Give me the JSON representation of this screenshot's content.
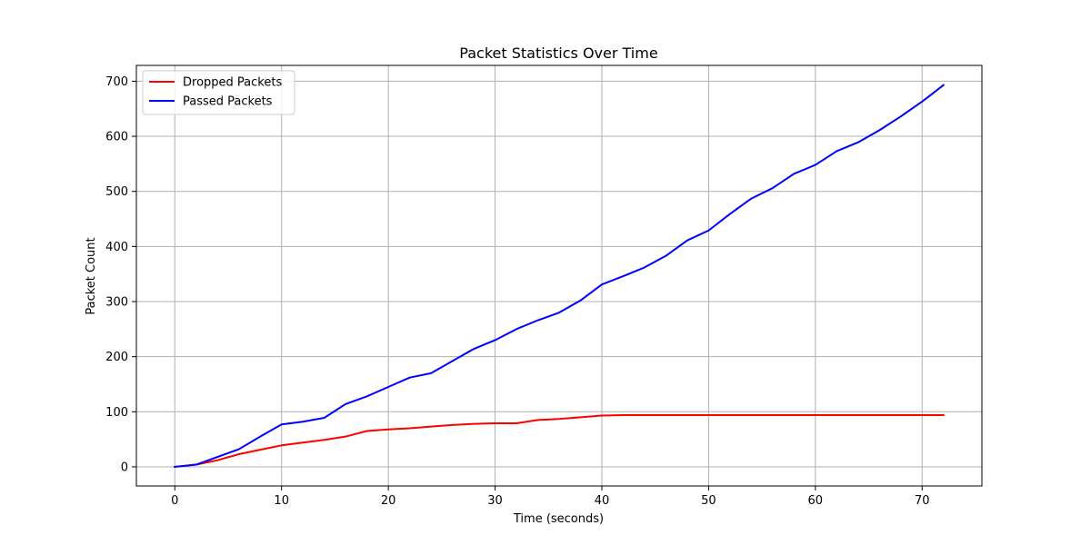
{
  "chart_data": {
    "type": "line",
    "title": "Packet Statistics Over Time",
    "xlabel": "Time (seconds)",
    "ylabel": "Packet Count",
    "xlim": [
      -3.6,
      75.6
    ],
    "ylim": [
      -34.7,
      728.7
    ],
    "xticks": [
      0,
      10,
      20,
      30,
      40,
      50,
      60,
      70
    ],
    "yticks": [
      0,
      100,
      200,
      300,
      400,
      500,
      600,
      700
    ],
    "grid": true,
    "legend_position": "top-left",
    "x": [
      0,
      2,
      4,
      6,
      8,
      10,
      12,
      14,
      16,
      18,
      20,
      22,
      24,
      26,
      28,
      30,
      32,
      34,
      36,
      38,
      40,
      42,
      44,
      46,
      48,
      50,
      52,
      54,
      56,
      58,
      60,
      62,
      64,
      66,
      68,
      70,
      72
    ],
    "series": [
      {
        "name": "Dropped Packets",
        "color": "#ff0000",
        "values": [
          0,
          4,
          12,
          23,
          31,
          39,
          44,
          49,
          55,
          65,
          68,
          70,
          73,
          76,
          78,
          79,
          79,
          85,
          87,
          90,
          93,
          94,
          94,
          94,
          94,
          94,
          94,
          94,
          94,
          94,
          94,
          94,
          94,
          94,
          94,
          94,
          94
        ]
      },
      {
        "name": "Passed Packets",
        "color": "#0000ff",
        "values": [
          0,
          4,
          18,
          32,
          55,
          77,
          82,
          89,
          114,
          128,
          145,
          162,
          170,
          192,
          214,
          230,
          250,
          266,
          280,
          302,
          331,
          346,
          362,
          383,
          411,
          429,
          459,
          487,
          506,
          532,
          548,
          573,
          589,
          611,
          636,
          663,
          693
        ]
      }
    ]
  }
}
